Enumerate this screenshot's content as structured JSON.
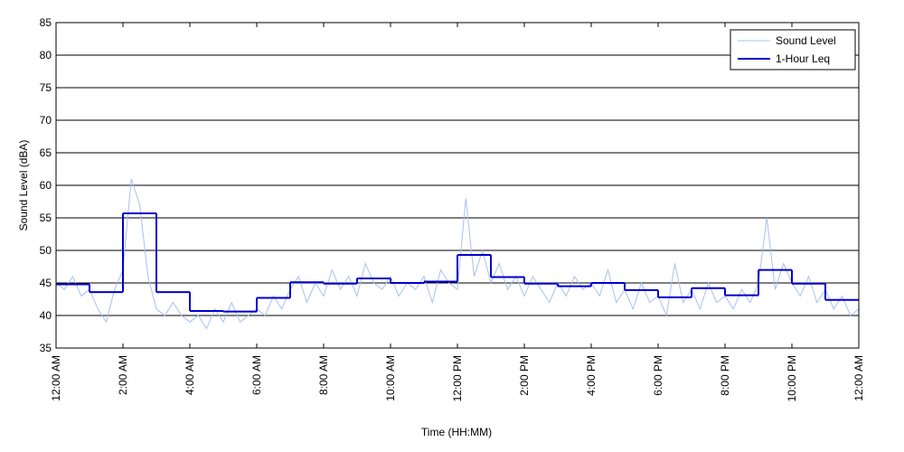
{
  "chart_data": {
    "type": "line",
    "xlabel": "Time (HH:MM)",
    "ylabel": "Sound Level (dBA)",
    "xlim": [
      0,
      24
    ],
    "ylim": [
      35,
      85
    ],
    "xticks": [
      {
        "value": 0,
        "label": "12:00 AM"
      },
      {
        "value": 2,
        "label": "2:00 AM"
      },
      {
        "value": 4,
        "label": "4:00 AM"
      },
      {
        "value": 6,
        "label": "6:00 AM"
      },
      {
        "value": 8,
        "label": "8:00 AM"
      },
      {
        "value": 10,
        "label": "10:00 AM"
      },
      {
        "value": 12,
        "label": "12:00 PM"
      },
      {
        "value": 14,
        "label": "2:00 PM"
      },
      {
        "value": 16,
        "label": "4:00 PM"
      },
      {
        "value": 18,
        "label": "6:00 PM"
      },
      {
        "value": 20,
        "label": "8:00 PM"
      },
      {
        "value": 22,
        "label": "10:00 PM"
      },
      {
        "value": 24,
        "label": "12:00 AM"
      }
    ],
    "yticks": [
      35,
      40,
      45,
      50,
      55,
      60,
      65,
      70,
      75,
      80,
      85
    ],
    "grid": true,
    "legend": "upper right",
    "series": [
      {
        "name": "Sound Level",
        "color": "#a8c0f0",
        "style": "line",
        "x": [
          0,
          0.25,
          0.5,
          0.75,
          1,
          1.25,
          1.5,
          1.75,
          2,
          2.25,
          2.5,
          2.75,
          3,
          3.25,
          3.5,
          3.75,
          4,
          4.25,
          4.5,
          4.75,
          5,
          5.25,
          5.5,
          5.75,
          6,
          6.25,
          6.5,
          6.75,
          7,
          7.25,
          7.5,
          7.75,
          8,
          8.25,
          8.5,
          8.75,
          9,
          9.25,
          9.5,
          9.75,
          10,
          10.25,
          10.5,
          10.75,
          11,
          11.25,
          11.5,
          11.75,
          12,
          12.25,
          12.5,
          12.75,
          13,
          13.25,
          13.5,
          13.75,
          14,
          14.25,
          14.5,
          14.75,
          15,
          15.25,
          15.5,
          15.75,
          16,
          16.25,
          16.5,
          16.75,
          17,
          17.25,
          17.5,
          17.75,
          18,
          18.25,
          18.5,
          18.75,
          19,
          19.25,
          19.5,
          19.75,
          20,
          20.25,
          20.5,
          20.75,
          21,
          21.25,
          21.5,
          21.75,
          22,
          22.25,
          22.5,
          22.75,
          23,
          23.25,
          23.5,
          23.75,
          24
        ],
        "values": [
          45,
          44,
          46,
          43,
          44,
          41,
          39,
          44,
          47,
          61,
          57,
          46,
          41,
          40,
          42,
          40,
          39,
          40,
          38,
          41,
          39,
          42,
          39,
          40,
          41,
          40,
          43,
          41,
          44,
          46,
          42,
          45,
          43,
          47,
          44,
          46,
          43,
          48,
          45,
          44,
          46,
          43,
          45,
          44,
          46,
          42,
          47,
          45,
          44,
          58,
          46,
          50,
          45,
          48,
          44,
          46,
          43,
          46,
          44,
          42,
          45,
          43,
          46,
          44,
          45,
          43,
          47,
          42,
          44,
          41,
          45,
          42,
          43,
          40,
          48,
          42,
          44,
          41,
          45,
          42,
          43,
          41,
          44,
          42,
          45,
          55,
          44,
          48,
          45,
          43,
          46,
          42,
          44,
          41,
          43,
          40,
          41
        ]
      },
      {
        "name": "1-Hour Leq",
        "color": "#0000cc",
        "style": "step",
        "x": [
          0,
          1,
          2,
          3,
          4,
          5,
          6,
          7,
          8,
          9,
          10,
          11,
          12,
          13,
          14,
          15,
          16,
          17,
          18,
          19,
          20,
          21,
          22,
          23
        ],
        "values": [
          44.8,
          43.6,
          55.7,
          43.6,
          40.7,
          40.6,
          42.7,
          45.1,
          44.9,
          45.7,
          45.0,
          45.2,
          49.3,
          45.9,
          44.9,
          44.5,
          45.0,
          43.9,
          42.8,
          44.2,
          43.1,
          47.0,
          44.9,
          42.4
        ]
      }
    ]
  }
}
